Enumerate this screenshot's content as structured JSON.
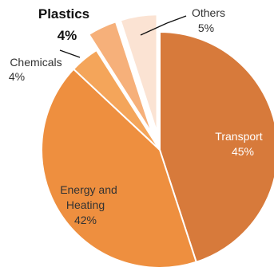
{
  "chart_data": {
    "type": "pie",
    "exploded_slices": [
      "Plastics",
      "Others"
    ],
    "slices": [
      {
        "label": "Transport",
        "value": 45,
        "pct_label": "45%",
        "color": "#d77a3b"
      },
      {
        "label": "Energy and Heating",
        "value": 42,
        "pct_label": "42%",
        "color": "#ee8f3f"
      },
      {
        "label": "Chemicals",
        "value": 4,
        "pct_label": "4%",
        "color": "#f4a55a"
      },
      {
        "label": "Plastics",
        "value": 4,
        "pct_label": "4%",
        "color": "#f6b07a"
      },
      {
        "label": "Others",
        "value": 5,
        "pct_label": "5%",
        "color": "#fbe3d3"
      }
    ]
  }
}
